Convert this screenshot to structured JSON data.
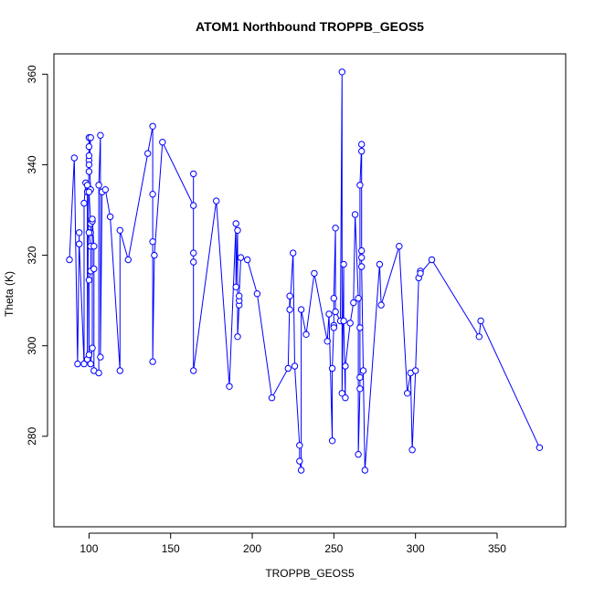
{
  "chart_data": {
    "type": "line",
    "title": "ATOM1 Northbound TROPPB_GEOS5",
    "xlabel": "TROPPB_GEOS5",
    "ylabel": "Theta (K)",
    "xlim": [
      78.5,
      392
    ],
    "ylim": [
      260,
      364.5
    ],
    "xticks": [
      100,
      150,
      200,
      250,
      300,
      350
    ],
    "yticks": [
      280,
      300,
      320,
      340,
      360
    ],
    "x_tick_labels": [
      "100",
      "150",
      "200",
      "250",
      "300",
      "350"
    ],
    "y_tick_labels": [
      "280",
      "300",
      "320",
      "340",
      "360"
    ],
    "grid": false,
    "legend": "none",
    "series_color": "#0000ff",
    "marker": "open-circle",
    "points": [
      [
        88,
        319
      ],
      [
        91,
        341.5
      ],
      [
        93,
        296
      ],
      [
        94,
        325
      ],
      [
        94,
        322.5
      ],
      [
        97,
        296
      ],
      [
        97,
        331.5
      ],
      [
        98,
        336
      ],
      [
        99,
        334
      ],
      [
        99,
        335.5
      ],
      [
        99,
        297
      ],
      [
        100,
        346
      ],
      [
        100,
        341
      ],
      [
        100,
        340
      ],
      [
        100,
        338.5
      ],
      [
        101,
        346
      ],
      [
        100,
        344
      ],
      [
        100,
        342
      ],
      [
        101,
        334.5
      ],
      [
        100,
        334
      ],
      [
        101,
        327
      ],
      [
        101,
        325
      ],
      [
        100,
        325
      ],
      [
        101,
        322
      ],
      [
        101,
        316.5
      ],
      [
        100,
        314.5
      ],
      [
        100,
        298
      ],
      [
        101,
        296
      ],
      [
        102,
        299.5
      ],
      [
        102,
        327.5
      ],
      [
        102,
        328
      ],
      [
        103,
        322
      ],
      [
        103,
        317
      ],
      [
        103,
        294.5
      ],
      [
        106,
        294
      ],
      [
        106,
        335.5
      ],
      [
        107,
        346.5
      ],
      [
        107,
        297.5
      ],
      [
        108,
        334
      ],
      [
        110,
        334.5
      ],
      [
        113,
        328.5
      ],
      [
        119,
        294.5
      ],
      [
        119,
        325.5
      ],
      [
        124,
        319
      ],
      [
        136,
        342.5
      ],
      [
        139,
        348.5
      ],
      [
        139,
        333.5
      ],
      [
        139,
        323
      ],
      [
        139,
        296.5
      ],
      [
        140,
        320
      ],
      [
        145,
        345
      ],
      [
        164,
        331
      ],
      [
        164,
        338
      ],
      [
        164,
        320.5
      ],
      [
        164,
        318.5
      ],
      [
        164,
        294.5
      ],
      [
        178,
        332
      ],
      [
        186,
        291
      ],
      [
        190,
        327
      ],
      [
        190,
        313
      ],
      [
        191,
        325.5
      ],
      [
        191,
        302
      ],
      [
        192,
        309
      ],
      [
        192,
        310
      ],
      [
        192,
        311
      ],
      [
        193,
        319.5
      ],
      [
        197,
        319
      ],
      [
        203,
        311.5
      ],
      [
        212,
        288.5
      ],
      [
        222,
        295
      ],
      [
        223,
        311
      ],
      [
        223,
        308
      ],
      [
        225,
        320.5
      ],
      [
        226,
        295.5
      ],
      [
        229,
        278
      ],
      [
        229,
        274.5
      ],
      [
        230,
        272.5
      ],
      [
        230,
        308
      ],
      [
        233,
        302.5
      ],
      [
        238,
        316
      ],
      [
        246,
        301
      ],
      [
        247,
        307
      ],
      [
        249,
        279
      ],
      [
        249,
        295
      ],
      [
        250,
        304.5
      ],
      [
        250,
        304
      ],
      [
        250,
        310.5
      ],
      [
        251,
        326
      ],
      [
        251,
        307.5
      ],
      [
        254,
        305.5
      ],
      [
        255,
        360.5
      ],
      [
        255,
        289.5
      ],
      [
        256,
        318
      ],
      [
        256,
        305.5
      ],
      [
        257,
        288.5
      ],
      [
        257,
        295.5
      ],
      [
        260,
        305
      ],
      [
        262,
        309.5
      ],
      [
        263,
        329
      ],
      [
        265,
        310.5
      ],
      [
        265,
        276
      ],
      [
        266,
        290.5
      ],
      [
        266,
        293
      ],
      [
        266,
        304
      ],
      [
        266,
        335.5
      ],
      [
        267,
        344.5
      ],
      [
        267,
        343
      ],
      [
        267,
        321
      ],
      [
        267,
        319.5
      ],
      [
        267,
        317.5
      ],
      [
        268,
        294.5
      ],
      [
        269,
        272.5
      ],
      [
        278,
        318
      ],
      [
        279,
        309
      ],
      [
        290,
        322
      ],
      [
        295,
        289.5
      ],
      [
        297,
        294
      ],
      [
        298,
        277
      ],
      [
        300,
        294.5
      ],
      [
        302,
        315
      ],
      [
        303,
        316.5
      ],
      [
        303,
        316
      ],
      [
        310,
        319
      ],
      [
        339,
        302
      ],
      [
        340,
        305.5
      ],
      [
        376,
        277.5
      ]
    ]
  }
}
